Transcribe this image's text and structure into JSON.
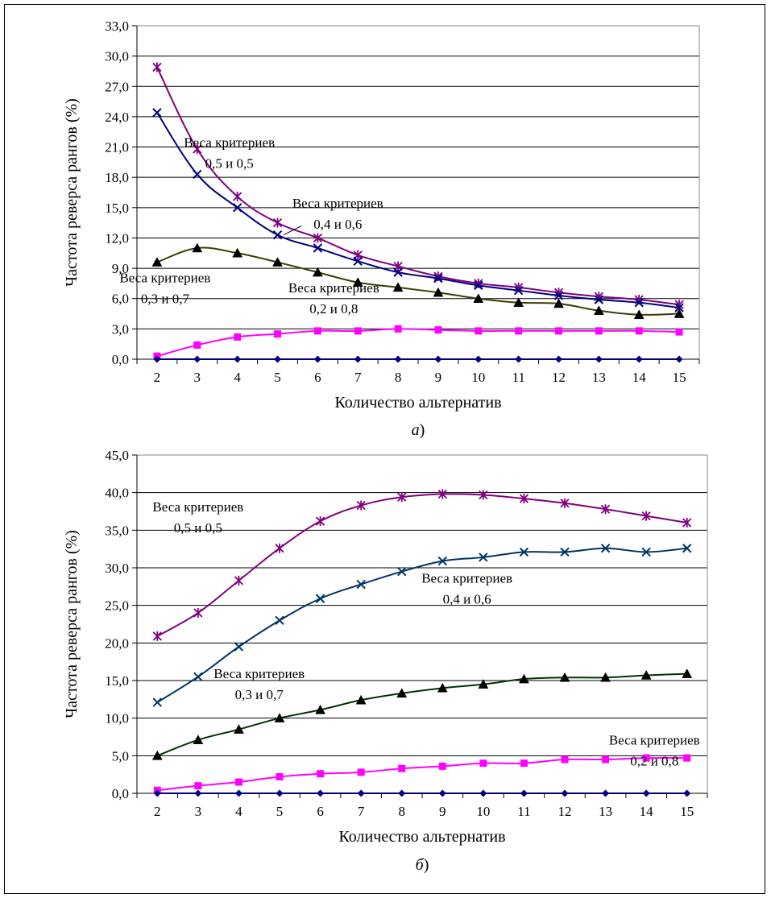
{
  "chart_data": [
    {
      "type": "line",
      "subtitle_letter": "а",
      "subtitle_paren": ")",
      "xlabel": "Количество альтернатив",
      "ylabel": "Частота реверса рангов (%)",
      "x": [
        2,
        3,
        4,
        5,
        6,
        7,
        8,
        9,
        10,
        11,
        12,
        13,
        14,
        15
      ],
      "x_ticks": [
        "2",
        "3",
        "4",
        "5",
        "6",
        "7",
        "8",
        "9",
        "10",
        "11",
        "12",
        "13",
        "14",
        "15"
      ],
      "ylim": [
        0,
        33
      ],
      "y_ticks": [
        "0,0",
        "3,0",
        "6,0",
        "9,0",
        "12,0",
        "15,0",
        "18,0",
        "21,0",
        "24,0",
        "27,0",
        "30,0",
        "33,0"
      ],
      "grid": true,
      "series": [
        {
          "values": [
            28.9,
            20.8,
            16.1,
            13.5,
            12.0,
            10.3,
            9.2,
            8.2,
            7.5,
            7.1,
            6.6,
            6.2,
            5.9,
            5.4
          ],
          "color": "#800080",
          "marker": "asterisk"
        },
        {
          "values": [
            24.4,
            18.3,
            15.0,
            12.3,
            11.0,
            9.7,
            8.6,
            8.0,
            7.3,
            6.8,
            6.3,
            5.9,
            5.6,
            5.1
          ],
          "color": "#000080",
          "marker": "x"
        },
        {
          "values": [
            9.6,
            11.0,
            10.5,
            9.6,
            8.6,
            7.6,
            7.1,
            6.6,
            6.0,
            5.6,
            5.5,
            4.8,
            4.4,
            4.5
          ],
          "color": "#3d3d00",
          "marker": "triangle"
        },
        {
          "values": [
            0.3,
            1.4,
            2.2,
            2.5,
            2.8,
            2.8,
            3.0,
            2.9,
            2.8,
            2.8,
            2.8,
            2.8,
            2.8,
            2.7
          ],
          "color": "#ff00ff",
          "marker": "square"
        },
        {
          "values": [
            0,
            0,
            0,
            0,
            0,
            0,
            0,
            0,
            0,
            0,
            0,
            0,
            0,
            0
          ],
          "color": "#000080",
          "marker": "diamond"
        }
      ],
      "annotations": [
        {
          "line1": "Веса критериев",
          "line2": "0,5 и 0,5",
          "at": [
            3.8,
            21.0
          ]
        },
        {
          "line1": "Веса критериев",
          "line2": "0,4 и 0,6",
          "at": [
            6.5,
            15.0
          ]
        },
        {
          "line1": "Веса критериев",
          "line2": "0,3 и 0,7",
          "at": [
            2.2,
            7.6
          ]
        },
        {
          "line1": "Веса критериев",
          "line2": "0,2 и 0,8",
          "at": [
            6.4,
            6.6
          ]
        }
      ],
      "pointer": {
        "from": [
          5.6,
          13.2
        ],
        "to": [
          5.15,
          12.3
        ]
      }
    },
    {
      "type": "line",
      "subtitle_letter": "б",
      "subtitle_paren": ")",
      "xlabel": "Количество альтернатив",
      "ylabel": "Частота реверса рангов (%)",
      "x": [
        2,
        3,
        4,
        5,
        6,
        7,
        8,
        9,
        10,
        11,
        12,
        13,
        14,
        15
      ],
      "x_ticks": [
        "2",
        "3",
        "4",
        "5",
        "6",
        "7",
        "8",
        "9",
        "10",
        "11",
        "12",
        "13",
        "14",
        "15"
      ],
      "ylim": [
        0,
        45
      ],
      "y_ticks": [
        "0,0",
        "5,0",
        "10,0",
        "15,0",
        "20,0",
        "25,0",
        "30,0",
        "35,0",
        "40,0",
        "45,0"
      ],
      "grid": true,
      "series": [
        {
          "values": [
            20.9,
            24.0,
            28.3,
            32.6,
            36.2,
            38.3,
            39.4,
            39.8,
            39.7,
            39.2,
            38.6,
            37.8,
            36.9,
            36.0
          ],
          "color": "#800080",
          "marker": "asterisk"
        },
        {
          "values": [
            12.1,
            15.5,
            19.5,
            23.0,
            25.9,
            27.8,
            29.5,
            30.9,
            31.4,
            32.1,
            32.1,
            32.6,
            32.1,
            32.6
          ],
          "color": "#003366",
          "marker": "x"
        },
        {
          "values": [
            5.0,
            7.1,
            8.5,
            10.0,
            11.1,
            12.4,
            13.3,
            14.0,
            14.5,
            15.2,
            15.4,
            15.4,
            15.7,
            15.9
          ],
          "color": "#003300",
          "marker": "triangle"
        },
        {
          "values": [
            0.4,
            1.0,
            1.5,
            2.2,
            2.6,
            2.8,
            3.3,
            3.6,
            4.0,
            4.0,
            4.5,
            4.5,
            4.7,
            4.7
          ],
          "color": "#ff00ff",
          "marker": "square"
        },
        {
          "values": [
            0,
            0,
            0,
            0,
            0,
            0,
            0,
            0,
            0,
            0,
            0,
            0,
            0,
            0
          ],
          "color": "#000080",
          "marker": "diamond"
        }
      ],
      "annotations": [
        {
          "line1": "Веса критериев",
          "line2": "0,5 и 0,5",
          "at": [
            3.0,
            37.5
          ]
        },
        {
          "line1": "Веса критериев",
          "line2": "0,4 и 0,6",
          "at": [
            9.6,
            28.0
          ]
        },
        {
          "line1": "Веса критериев",
          "line2": "0,3 и 0,7",
          "at": [
            4.5,
            15.3
          ]
        },
        {
          "line1": "Веса критериев",
          "line2": "0,2 и 0,8",
          "at": [
            14.2,
            6.5
          ]
        }
      ]
    }
  ]
}
